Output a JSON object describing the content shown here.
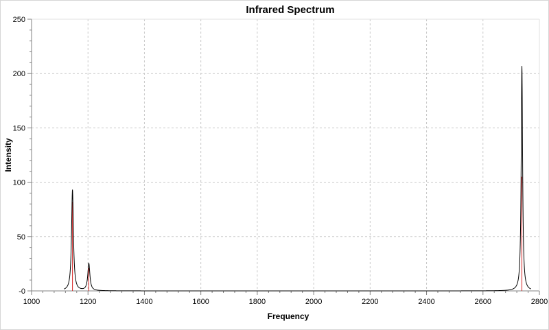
{
  "chart_data": {
    "type": "line",
    "title": "Infrared Spectrum",
    "xlabel": "Frequency",
    "ylabel": "Intensity",
    "xlim": [
      1000,
      2800
    ],
    "ylim": [
      0,
      250
    ],
    "x_ticks": [
      1000,
      1200,
      1400,
      1600,
      1800,
      2000,
      2200,
      2400,
      2600,
      2800
    ],
    "y_ticks": [
      0,
      50,
      100,
      150,
      200,
      250
    ],
    "x_tick_labels": [
      "1000",
      "1200",
      "1400",
      "1600",
      "1800",
      "2000",
      "2200",
      "2400",
      "2600",
      "2800"
    ],
    "y_tick_labels": [
      "-0",
      "50",
      "100",
      "150",
      "200",
      "250"
    ],
    "grid": true,
    "x_range_plotted": [
      1115,
      2770
    ],
    "peaks": [
      {
        "x": 1145,
        "y": 93,
        "width": 8
      },
      {
        "x": 1203,
        "y": 25,
        "width": 9
      },
      {
        "x": 2738,
        "y": 207,
        "width": 6
      }
    ],
    "stick_lines": [
      {
        "x": 1145,
        "y": 82
      },
      {
        "x": 1203,
        "y": 21
      },
      {
        "x": 2738,
        "y": 105
      }
    ],
    "colors": {
      "spectrum": "#000000",
      "stick": "#d62020",
      "grid": "#c8c8c8",
      "axis": "#808080"
    }
  }
}
